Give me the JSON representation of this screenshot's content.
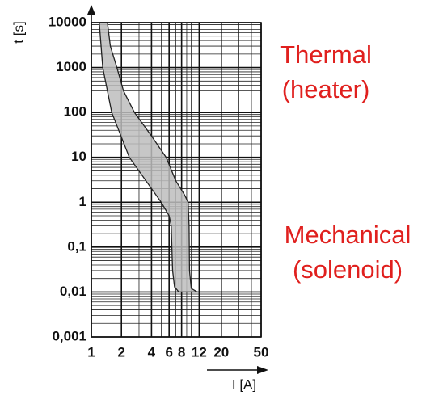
{
  "chart_data": {
    "type": "band",
    "y_label": "t [s]",
    "x_label": "I [A]",
    "xscale": "log",
    "yscale": "log",
    "xlim": [
      1,
      50
    ],
    "ylim": [
      0.001,
      10000
    ],
    "xticks": [
      1,
      2,
      4,
      6,
      8,
      12,
      20,
      50
    ],
    "yticks": [
      10000,
      1000,
      100,
      10,
      1,
      {
        "value": 0.1,
        "label": "0,1"
      },
      {
        "value": 0.01,
        "label": "0,01"
      },
      {
        "value": 0.001,
        "label": "0,001"
      }
    ],
    "grid": true,
    "minor_grid": true,
    "color": "#bdbdbd",
    "x": [
      1.2,
      1.3,
      1.6,
      2.4,
      5.0,
      6.0,
      6.3,
      6.4,
      6.5,
      6.8,
      7.5,
      11.5,
      10,
      9.6,
      9.5,
      9.3,
      8.5,
      7,
      5.6,
      4,
      2.7,
      2.1,
      1.8,
      1.55,
      1.45
    ],
    "values": [
      10000,
      1000,
      100,
      10,
      1,
      0.5,
      0.3,
      0.1,
      0.03,
      0.013,
      0.01,
      0.01,
      0.012,
      0.03,
      0.3,
      1,
      1.5,
      3,
      10,
      30,
      100,
      300,
      1000,
      3000,
      10000
    ],
    "annotations": [
      "Thermal",
      "(heater)",
      "Mechanical",
      "(solenoid)"
    ],
    "annotation_color": "#e0201e"
  }
}
